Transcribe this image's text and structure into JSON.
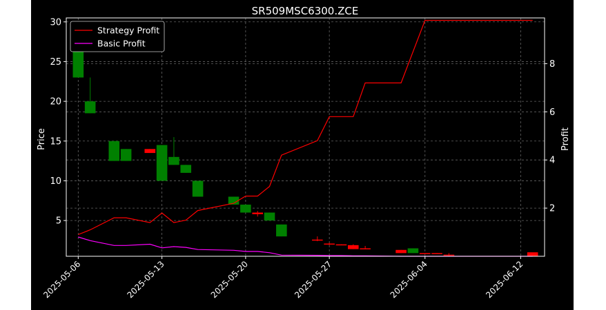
{
  "chart_data": {
    "type": "line",
    "title": "SR509MSC6300.ZCE",
    "ylabel": "Price",
    "y2label": "Profit",
    "xlabel": "",
    "x_tick_labels": [
      "2025-05-06",
      "2025-05-13",
      "2025-05-20",
      "2025-05-27",
      "2025-06-04",
      "2025-06-12"
    ],
    "x_tick_dates": [
      "2025-05-06",
      "2025-05-13",
      "2025-05-20",
      "2025-05-27",
      "2025-06-04",
      "2025-06-12"
    ],
    "xlim": [
      "2025-05-05",
      "2025-06-14"
    ],
    "ylim": [
      0.5,
      30.5
    ],
    "y_ticks": [
      5,
      10,
      15,
      20,
      25,
      30
    ],
    "y2lim": [
      0.0,
      9.9
    ],
    "y2_ticks": [
      2,
      4,
      6,
      8
    ],
    "grid": true,
    "legend_position": "top-left",
    "colors": {
      "background": "#000000",
      "text": "#ffffff",
      "grid": "#666666",
      "up": "#ff0000",
      "down": "#008000"
    },
    "candles": [
      {
        "date": "2025-05-06",
        "open": 28.0,
        "high": 28.5,
        "low": 23.0,
        "close": 23.0
      },
      {
        "date": "2025-05-07",
        "open": 20.0,
        "high": 23.0,
        "low": 18.5,
        "close": 18.5
      },
      {
        "date": "2025-05-09",
        "open": 15.0,
        "high": 15.0,
        "low": 12.5,
        "close": 12.5
      },
      {
        "date": "2025-05-10",
        "open": 14.0,
        "high": 14.0,
        "low": 12.5,
        "close": 12.5
      },
      {
        "date": "2025-05-12",
        "open": 13.5,
        "high": 14.0,
        "low": 13.5,
        "close": 14.0
      },
      {
        "date": "2025-05-13",
        "open": 14.5,
        "high": 14.5,
        "low": 10.0,
        "close": 10.0
      },
      {
        "date": "2025-05-14",
        "open": 13.0,
        "high": 15.5,
        "low": 12.0,
        "close": 12.0
      },
      {
        "date": "2025-05-15",
        "open": 12.0,
        "high": 12.0,
        "low": 11.0,
        "close": 11.0
      },
      {
        "date": "2025-05-16",
        "open": 10.0,
        "high": 10.0,
        "low": 8.0,
        "close": 8.0
      },
      {
        "date": "2025-05-19",
        "open": 8.0,
        "high": 8.0,
        "low": 7.0,
        "close": 7.0
      },
      {
        "date": "2025-05-20",
        "open": 7.0,
        "high": 7.0,
        "low": 6.0,
        "close": 6.0
      },
      {
        "date": "2025-05-21",
        "open": 5.8,
        "high": 6.2,
        "low": 5.5,
        "close": 6.0
      },
      {
        "date": "2025-05-22",
        "open": 6.0,
        "high": 6.0,
        "low": 5.0,
        "close": 5.0
      },
      {
        "date": "2025-05-23",
        "open": 4.5,
        "high": 4.5,
        "low": 3.0,
        "close": 3.0
      },
      {
        "date": "2025-05-26",
        "open": 2.5,
        "high": 3.0,
        "low": 2.4,
        "close": 2.6
      },
      {
        "date": "2025-05-27",
        "open": 2.0,
        "high": 2.2,
        "low": 1.9,
        "close": 2.1
      },
      {
        "date": "2025-05-28",
        "open": 2.0,
        "high": 2.0,
        "low": 1.9,
        "close": 2.0
      },
      {
        "date": "2025-05-29",
        "open": 1.4,
        "high": 2.0,
        "low": 1.4,
        "close": 1.9
      },
      {
        "date": "2025-05-30",
        "open": 1.4,
        "high": 1.8,
        "low": 1.4,
        "close": 1.5
      },
      {
        "date": "2025-06-02",
        "open": 0.9,
        "high": 1.3,
        "low": 0.9,
        "close": 1.3
      },
      {
        "date": "2025-06-03",
        "open": 1.5,
        "high": 1.5,
        "low": 0.9,
        "close": 0.9
      },
      {
        "date": "2025-06-04",
        "open": 0.8,
        "high": 0.9,
        "low": 0.8,
        "close": 0.9
      },
      {
        "date": "2025-06-05",
        "open": 0.8,
        "high": 0.9,
        "low": 0.8,
        "close": 0.9
      },
      {
        "date": "2025-06-06",
        "open": 0.6,
        "high": 0.9,
        "low": 0.5,
        "close": 0.7
      },
      {
        "date": "2025-06-13",
        "open": 0.5,
        "high": 0.9,
        "low": 0.5,
        "close": 1.0
      }
    ],
    "series": [
      {
        "name": "Strategy Profit",
        "color": "#ff0000",
        "axis": "right",
        "points": [
          [
            "2025-05-06",
            0.9
          ],
          [
            "2025-05-07",
            1.1
          ],
          [
            "2025-05-09",
            1.6
          ],
          [
            "2025-05-10",
            1.6
          ],
          [
            "2025-05-12",
            1.4
          ],
          [
            "2025-05-13",
            1.8
          ],
          [
            "2025-05-14",
            1.4
          ],
          [
            "2025-05-15",
            1.5
          ],
          [
            "2025-05-16",
            1.9
          ],
          [
            "2025-05-19",
            2.2
          ],
          [
            "2025-05-20",
            2.5
          ],
          [
            "2025-05-21",
            2.5
          ],
          [
            "2025-05-22",
            2.9
          ],
          [
            "2025-05-23",
            4.2
          ],
          [
            "2025-05-26",
            4.8
          ],
          [
            "2025-05-27",
            5.8
          ],
          [
            "2025-05-28",
            5.8
          ],
          [
            "2025-05-29",
            5.8
          ],
          [
            "2025-05-30",
            7.2
          ],
          [
            "2025-06-02",
            7.2
          ],
          [
            "2025-06-04",
            9.8
          ],
          [
            "2025-06-13",
            9.8
          ]
        ]
      },
      {
        "name": "Basic Profit",
        "color": "#ff00ff",
        "axis": "right",
        "points": [
          [
            "2025-05-06",
            0.8
          ],
          [
            "2025-05-07",
            0.65
          ],
          [
            "2025-05-09",
            0.45
          ],
          [
            "2025-05-10",
            0.45
          ],
          [
            "2025-05-12",
            0.5
          ],
          [
            "2025-05-13",
            0.35
          ],
          [
            "2025-05-14",
            0.4
          ],
          [
            "2025-05-15",
            0.37
          ],
          [
            "2025-05-16",
            0.28
          ],
          [
            "2025-05-19",
            0.25
          ],
          [
            "2025-05-20",
            0.2
          ],
          [
            "2025-05-21",
            0.2
          ],
          [
            "2025-05-22",
            0.15
          ],
          [
            "2025-05-23",
            0.05
          ],
          [
            "2025-05-26",
            0.04
          ],
          [
            "2025-05-27",
            0.03
          ],
          [
            "2025-05-28",
            0.03
          ],
          [
            "2025-05-29",
            0.02
          ],
          [
            "2025-05-30",
            0.02
          ],
          [
            "2025-06-02",
            0.0
          ],
          [
            "2025-06-04",
            0.0
          ],
          [
            "2025-06-13",
            0.0
          ]
        ]
      }
    ]
  }
}
